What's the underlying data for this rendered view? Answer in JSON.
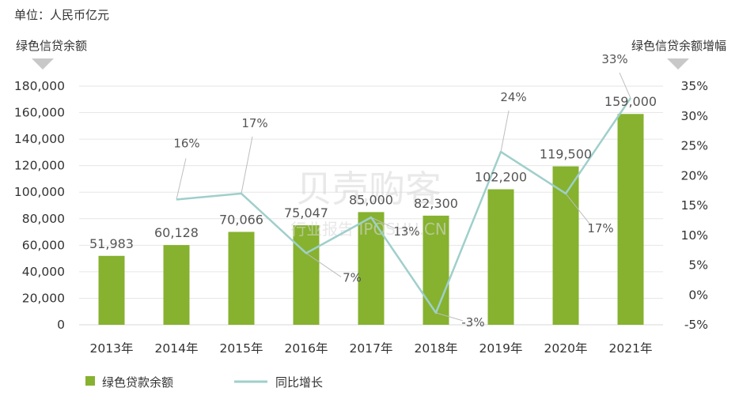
{
  "unit_label": "单位：人民币亿元",
  "watermark": {
    "main": "贝壳购客",
    "sub": "行业报告 IPOSHU.CN"
  },
  "chart_data": {
    "type": "bar",
    "categories": [
      "2013年",
      "2014年",
      "2015年",
      "2016年",
      "2017年",
      "2018年",
      "2019年",
      "2020年",
      "2021年"
    ],
    "series": [
      {
        "name": "绿色贷款余额",
        "type": "bar",
        "axis": "left",
        "values": [
          51983,
          60128,
          70066,
          75047,
          85000,
          82300,
          102200,
          119500,
          159000
        ],
        "labels": [
          "51,983",
          "60,128",
          "70,066",
          "75,047",
          "85,000",
          "82,300",
          "102,200",
          "119,500",
          "159,000"
        ],
        "color": "#86b22f"
      },
      {
        "name": "同比增长",
        "type": "line",
        "axis": "right",
        "values": [
          null,
          16,
          17,
          7,
          13,
          -3,
          24,
          17,
          33
        ],
        "labels": [
          "",
          "16%",
          "17%",
          "7%",
          "13%",
          "-3%",
          "24%",
          "17%",
          "33%"
        ],
        "color": "#9fcfcb"
      }
    ],
    "left_axis": {
      "title": "绿色信贷余额",
      "range": [
        0,
        180000
      ],
      "ticks": [
        "0",
        "20,000",
        "40,000",
        "60,000",
        "80,000",
        "100,000",
        "120,000",
        "140,000",
        "160,000",
        "180,000"
      ]
    },
    "right_axis": {
      "title": "绿色信贷余额增幅",
      "range": [
        -5,
        35
      ],
      "ticks": [
        "-5%",
        "0%",
        "5%",
        "10%",
        "15%",
        "20%",
        "25%",
        "30%",
        "35%"
      ]
    },
    "grid": true,
    "legend_position": "bottom-left"
  }
}
